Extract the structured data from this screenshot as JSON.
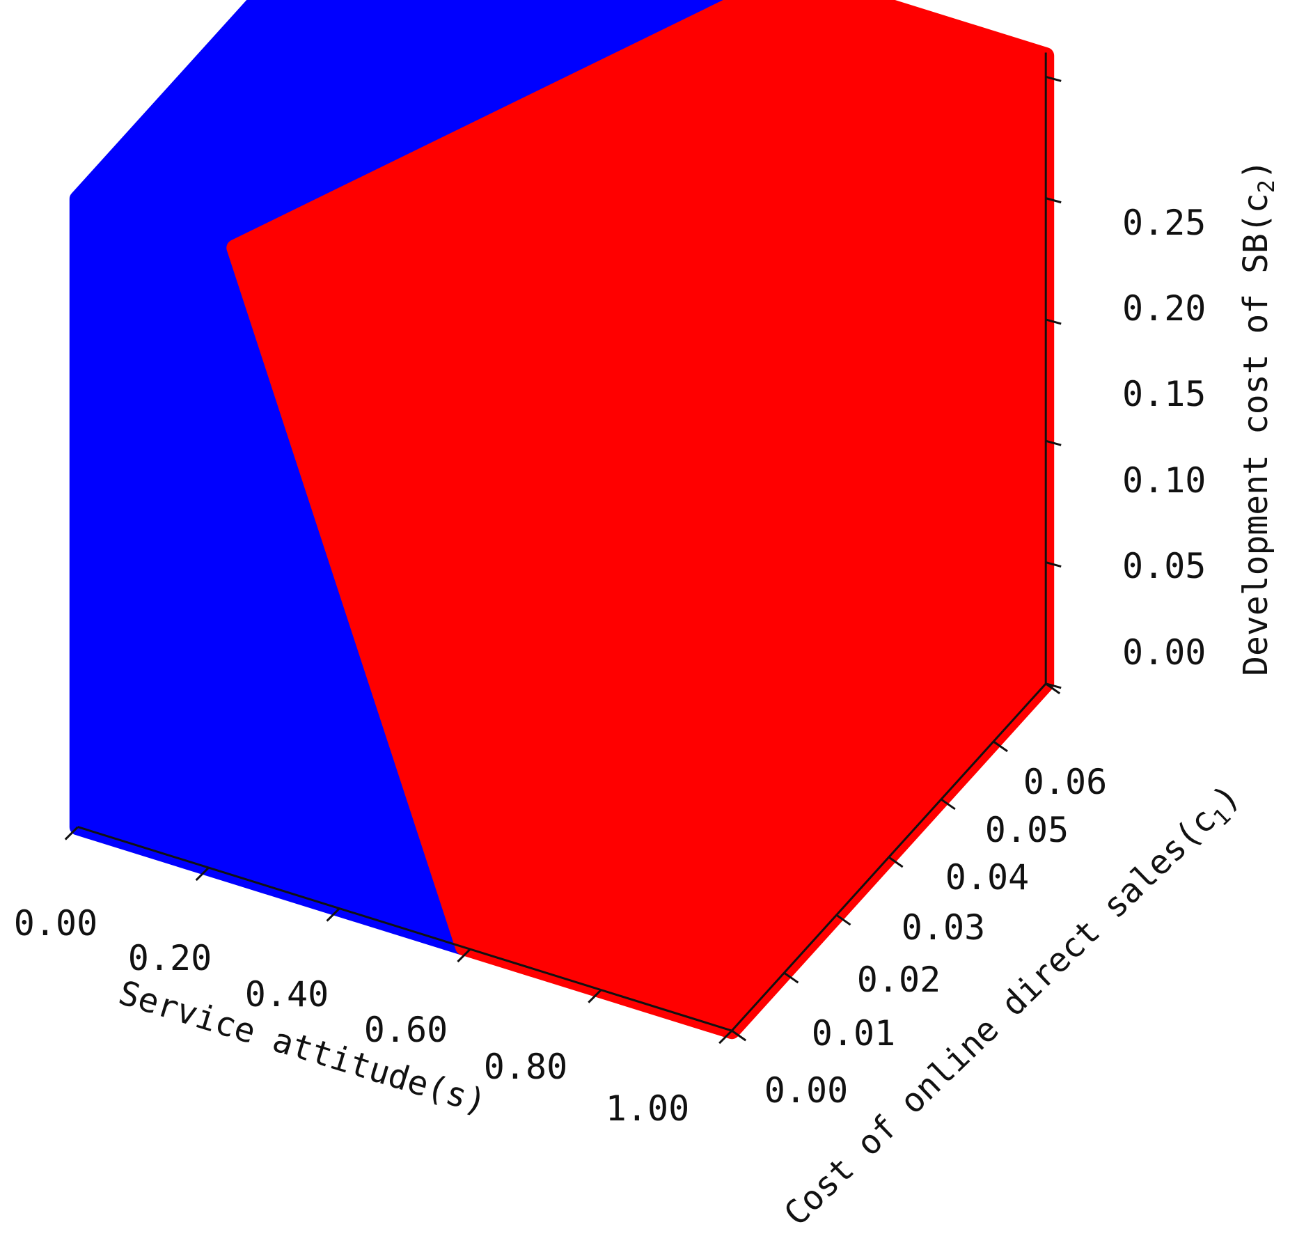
{
  "chart_data": {
    "type": "scatter",
    "projection": "3d",
    "title": "",
    "axes": {
      "x": {
        "label": "Service attitude(s)",
        "range": [
          0,
          1
        ],
        "ticks": [
          0,
          0.2,
          0.4,
          0.6,
          0.8,
          1.0
        ],
        "tick_labels": [
          "0.00",
          "0.20",
          "0.40",
          "0.60",
          "0.80",
          "1.00"
        ]
      },
      "y": {
        "label_main": "Cost of online direct sales",
        "label_symbol": "c",
        "label_subscript": "1",
        "range": [
          0,
          0.06
        ],
        "ticks": [
          0,
          0.01,
          0.02,
          0.03,
          0.04,
          0.05,
          0.06
        ],
        "tick_labels": [
          "0.00",
          "0.01",
          "0.02",
          "0.03",
          "0.04",
          "0.05",
          "0.06"
        ]
      },
      "z": {
        "label_main": "Development cost of SB",
        "label_symbol": "c",
        "label_subscript": "2",
        "range": [
          0,
          0.26
        ],
        "ticks": [
          0,
          0.05,
          0.1,
          0.15,
          0.2,
          0.25
        ],
        "tick_labels": [
          "0.00",
          "0.05",
          "0.10",
          "0.15",
          "0.20",
          "0.25"
        ]
      }
    },
    "grid": true,
    "series": [
      {
        "color": "#0000ff",
        "region": "s below boundary plane (lower service attitude side)"
      },
      {
        "color": "#ff0000",
        "region": "s above boundary plane (higher service attitude side)"
      }
    ],
    "boundary_s_points": {
      "front_bottom_c1_0_c2_0": 0.59,
      "front_top_c1_0_c2_026": 0.24,
      "back_top_c1_006_c2_026": 0.61
    }
  }
}
